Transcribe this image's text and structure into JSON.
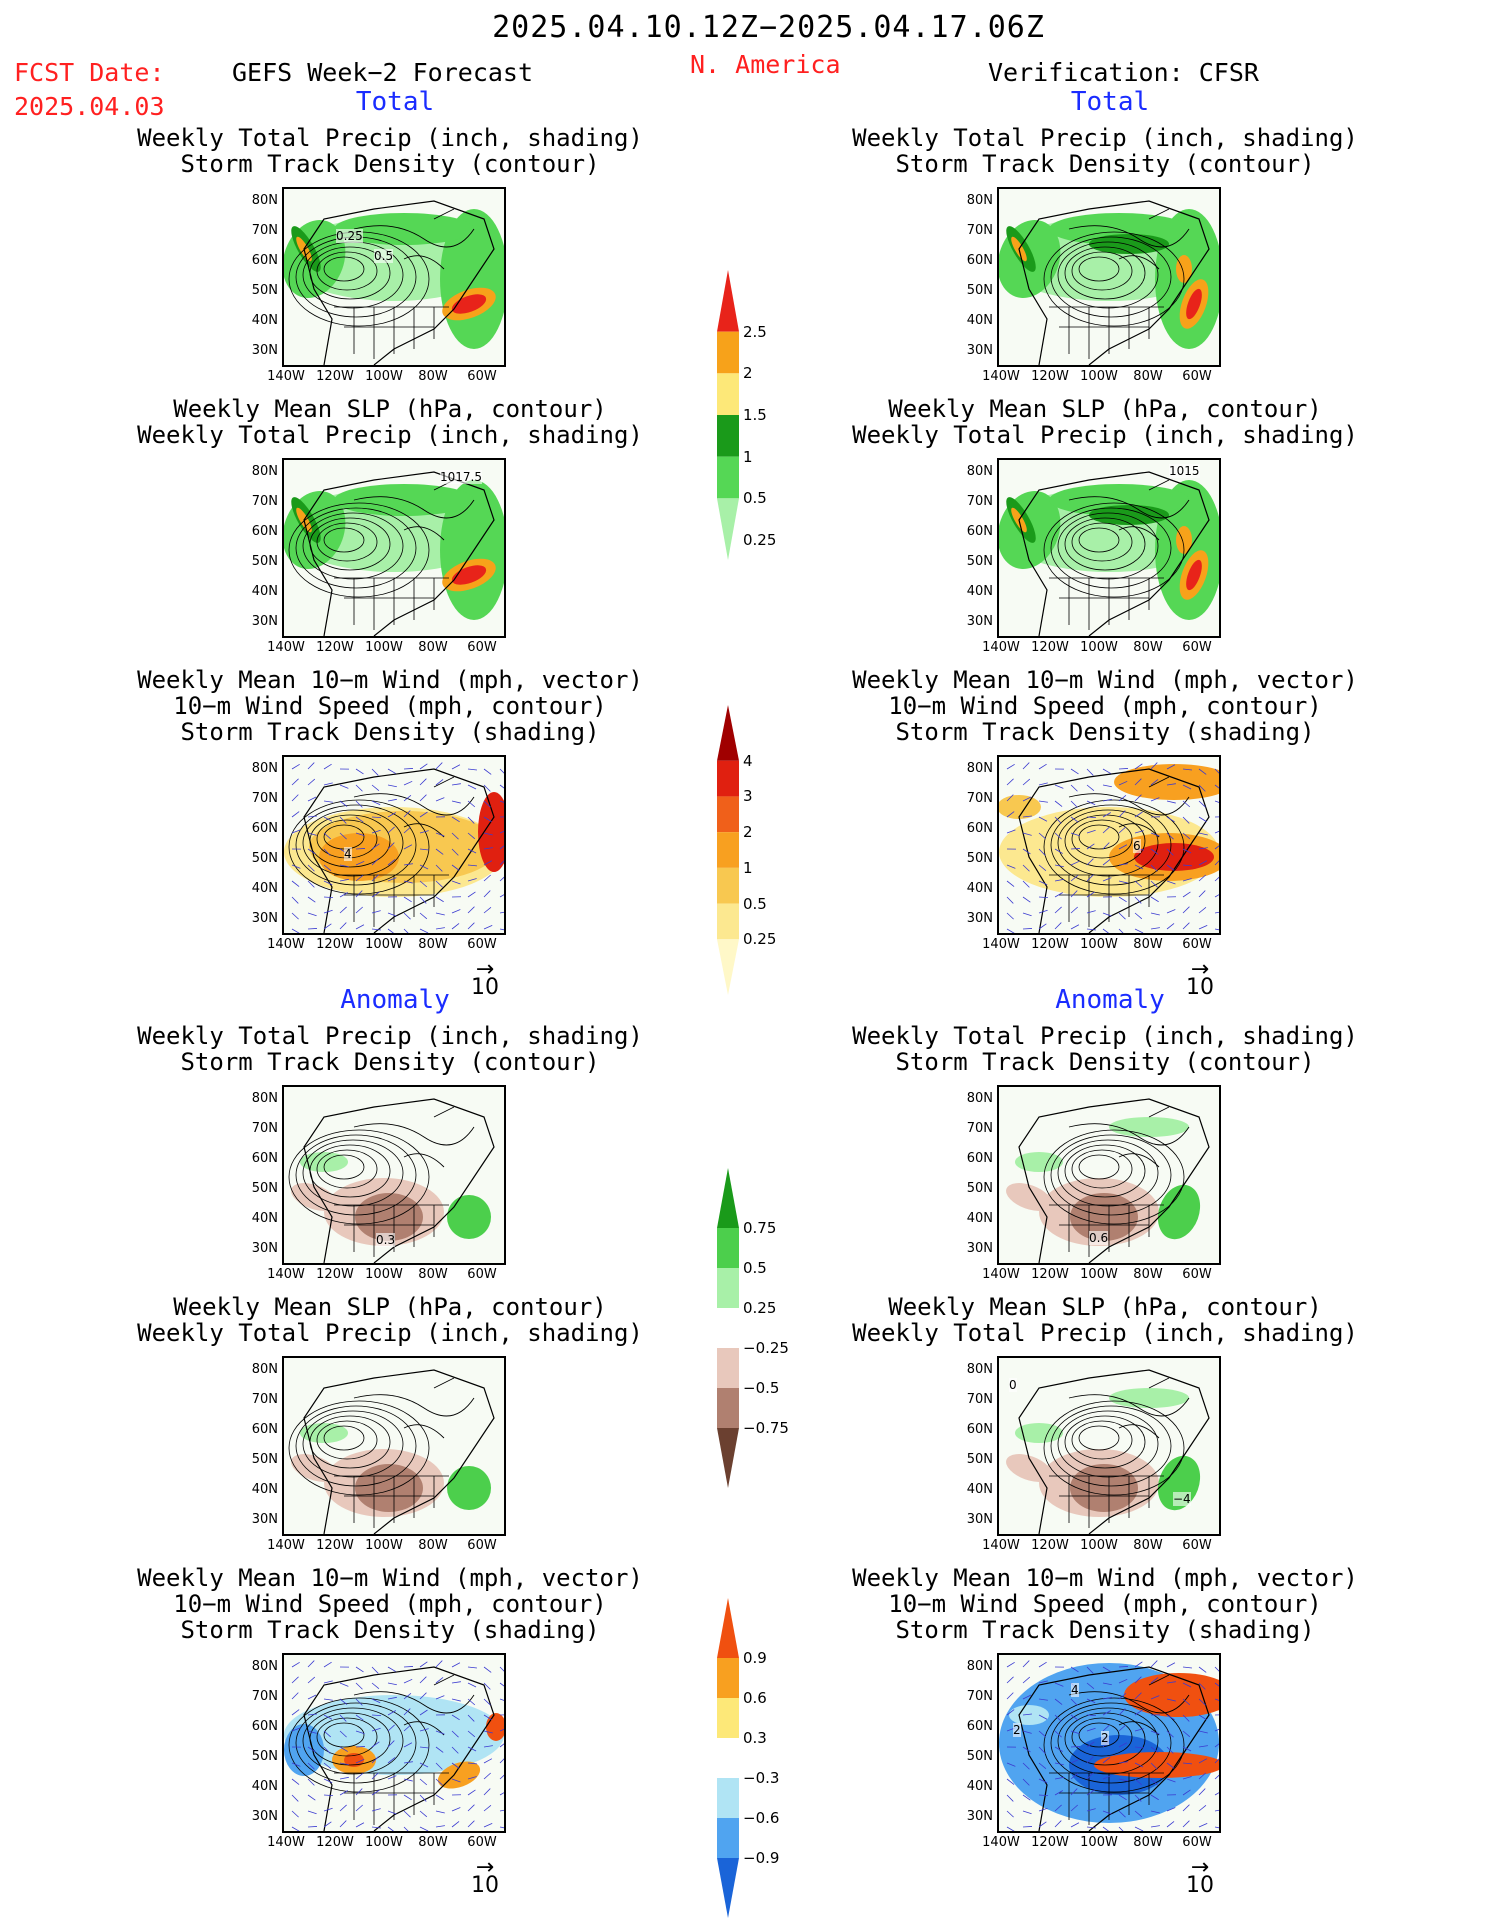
{
  "header": {
    "period": "2025.04.10.12Z−2025.04.17.06Z",
    "fcst_label": "FCST Date:",
    "fcst_date": "2025.04.03",
    "model": "GEFS Week−2 Forecast",
    "region": "N. America",
    "verification": "Verification: CFSR"
  },
  "sections": {
    "total": "Total",
    "anomaly": "Anomaly"
  },
  "titles": {
    "precip_storm": [
      "Weekly Total Precip (inch, shading)",
      "Storm Track Density (contour)"
    ],
    "slp_precip": [
      "Weekly Mean SLP (hPa, contour)",
      "Weekly Total Precip (inch, shading)"
    ],
    "wind_storm": [
      "Weekly Mean 10−m Wind (mph, vector)",
      "10−m Wind Speed (mph, contour)",
      "Storm Track Density (shading)"
    ]
  },
  "axes": {
    "lat_ticks": [
      "80N",
      "70N",
      "60N",
      "50N",
      "40N",
      "30N"
    ],
    "lon_ticks": [
      "140W",
      "120W",
      "100W",
      "80W",
      "60W"
    ],
    "vector_ref": "10"
  },
  "contour_labels": {
    "fc_total_precip": [
      "0.25",
      "0.5"
    ],
    "fc_total_slp": "1017.5",
    "vr_total_slp": "1015",
    "fc_total_wind": "4",
    "vr_total_wind": "6",
    "fc_anom_precip": "0.3",
    "vr_anom_precip": "0.6",
    "vr_anom_slp": [
      "0",
      "−4"
    ],
    "vr_anom_wind": [
      "4",
      "2",
      "2"
    ]
  },
  "colorbars": {
    "precip_total": {
      "labels": [
        "2.5",
        "2",
        "1.5",
        "1",
        "0.5",
        "0.25"
      ],
      "colors": [
        "#e8231a",
        "#f7a21a",
        "#fde878",
        "#1a9a1a",
        "#55d755",
        "#a8f0a8"
      ]
    },
    "storm_total": {
      "labels": [
        "4",
        "3",
        "2",
        "1",
        "0.5",
        "0.25"
      ],
      "colors": [
        "#a00000",
        "#e02010",
        "#f0601a",
        "#f8a020",
        "#f8c850",
        "#fce890",
        "#fff8c8"
      ]
    },
    "precip_anom": {
      "labels": [
        "0.75",
        "0.5",
        "0.25",
        "−0.25",
        "−0.5",
        "−0.75"
      ],
      "colors": [
        "#1a9a1a",
        "#4ccf4c",
        "#a8f0a8",
        "#ffffff",
        "#e8c8bc",
        "#b08070",
        "#6b4030"
      ]
    },
    "storm_anom": {
      "labels": [
        "0.9",
        "0.6",
        "0.3",
        "−0.3",
        "−0.6",
        "−0.9"
      ],
      "colors": [
        "#f05010",
        "#f8a020",
        "#fde878",
        "#ffffff",
        "#b0e4f4",
        "#50a4f0",
        "#1a64d8"
      ]
    }
  },
  "chart_data": {
    "type": "heatmap",
    "title": "2025.04.10.12Z−2025.04.17.06Z",
    "region": "N. America",
    "columns": [
      "GEFS Week−2 Forecast",
      "Verification: CFSR"
    ],
    "rows": [
      {
        "section": "Total",
        "titles": [
          "Weekly Total Precip (inch, shading)",
          "Storm Track Density (contour)"
        ],
        "shading_levels": [
          0.25,
          0.5,
          1,
          1.5,
          2,
          2.5
        ]
      },
      {
        "section": "Total",
        "titles": [
          "Weekly Mean SLP (hPa, contour)",
          "Weekly Total Precip (inch, shading)"
        ],
        "shading_levels": [
          0.25,
          0.5,
          1,
          1.5,
          2,
          2.5
        ]
      },
      {
        "section": "Total",
        "titles": [
          "Weekly Mean 10−m Wind (mph, vector)",
          "10−m Wind Speed (mph, contour)",
          "Storm Track Density (shading)"
        ],
        "shading_levels": [
          0.25,
          0.5,
          1,
          2,
          3,
          4
        ]
      },
      {
        "section": "Anomaly",
        "titles": [
          "Weekly Total Precip (inch, shading)",
          "Storm Track Density (contour)"
        ],
        "shading_levels": [
          -0.75,
          -0.5,
          -0.25,
          0.25,
          0.5,
          0.75
        ]
      },
      {
        "section": "Anomaly",
        "titles": [
          "Weekly Mean SLP (hPa, contour)",
          "Weekly Total Precip (inch, shading)"
        ],
        "shading_levels": [
          -0.75,
          -0.5,
          -0.25,
          0.25,
          0.5,
          0.75
        ]
      },
      {
        "section": "Anomaly",
        "titles": [
          "Weekly Mean 10−m Wind (mph, vector)",
          "10−m Wind Speed (mph, contour)",
          "Storm Track Density (shading)"
        ],
        "shading_levels": [
          -0.9,
          -0.6,
          -0.3,
          0.3,
          0.6,
          0.9
        ]
      }
    ],
    "xlim": [
      "140W",
      "55W"
    ],
    "ylim": [
      "25N",
      "85N"
    ]
  }
}
